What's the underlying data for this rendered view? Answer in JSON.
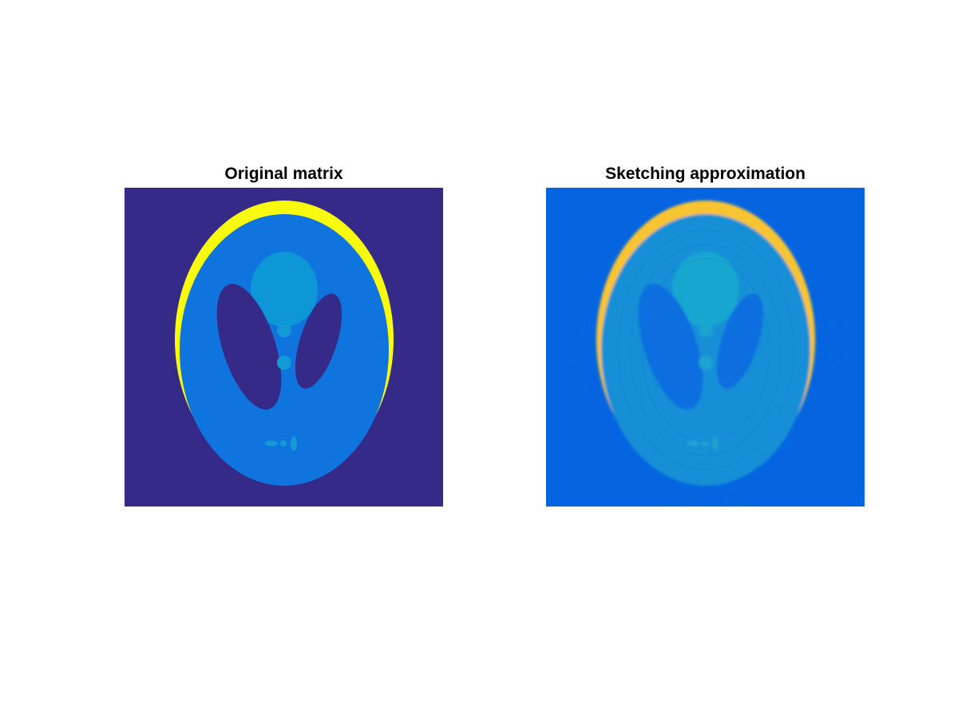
{
  "figure": {
    "left_title": "Original matrix",
    "right_title": "Sketching approximation"
  },
  "colors": {
    "original": {
      "background": "#352a87",
      "head_ring": "#f9fb0e",
      "brain": "#0f74de",
      "dark_ellipse": "#352a87",
      "bright_feature": "#0e97d6",
      "small_feature": "#139ad4"
    },
    "approximation": {
      "background": "#0565e0",
      "head_ring": "#f9c432",
      "brain": "#138fd6",
      "dark_ellipse": "#0e6ee0",
      "bright_feature": "#15a6d0",
      "small_feature": "#1aa3d0"
    }
  }
}
